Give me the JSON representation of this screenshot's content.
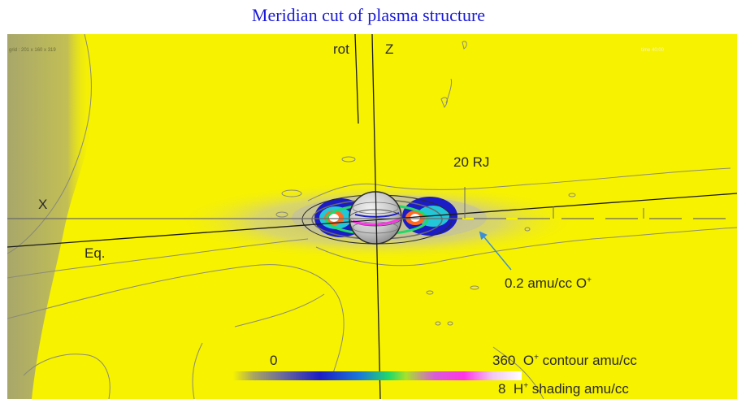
{
  "title": "Meridian cut of plasma structure",
  "grid_info": "grid : 201 x 160 x 319",
  "corner_info": "time 40:00",
  "axes": {
    "rot": "rot",
    "z": "Z",
    "x": "X",
    "equator": "Eq."
  },
  "scale_label": "20 RJ",
  "contour_annotation": {
    "text": "0.2 amu/cc O",
    "sup": "+"
  },
  "colorbar": {
    "min": "0",
    "top_max": "360",
    "top_label_species": "O",
    "top_label_sup": "+",
    "top_label_rest": "contour amu/cc",
    "bottom_max": "8",
    "bottom_label_species": "H",
    "bottom_label_sup": "+",
    "bottom_label_rest": "shading amu/cc"
  },
  "colors": {
    "title": "#1a1ad6",
    "background": "#f7f200",
    "contour": "#8a8a78",
    "arrow": "#3a8fd8"
  }
}
